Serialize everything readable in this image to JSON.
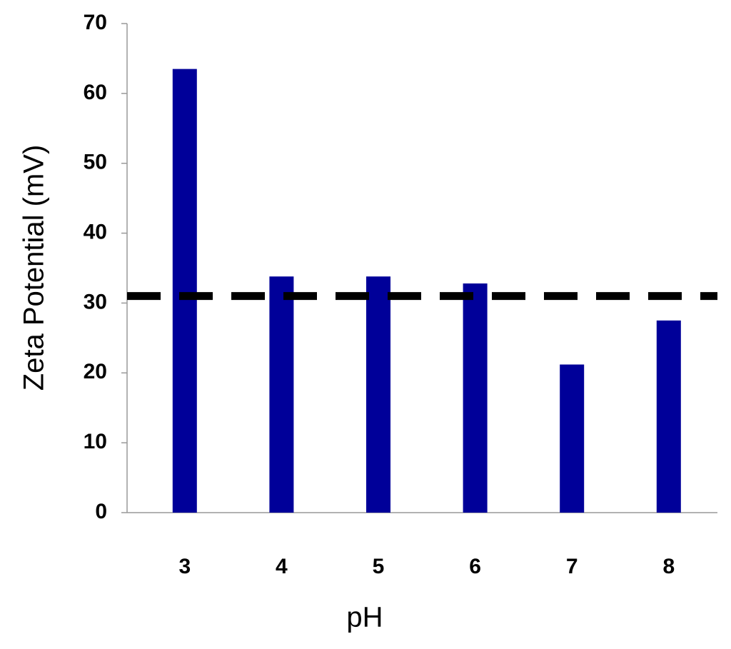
{
  "chart_data": {
    "type": "bar",
    "x_label": "pH",
    "y_label": "Zeta Potential (mV)",
    "categories": [
      "3",
      "4",
      "5",
      "6",
      "7",
      "8"
    ],
    "values": [
      63.5,
      33.8,
      33.8,
      32.8,
      21.2,
      27.5
    ],
    "color": "#000099",
    "ylim": [
      0,
      70
    ],
    "yticks": [
      0,
      10,
      20,
      30,
      40,
      50,
      60,
      70
    ],
    "reference_line": {
      "value": 31,
      "color": "#000000",
      "style": "dashed"
    }
  }
}
